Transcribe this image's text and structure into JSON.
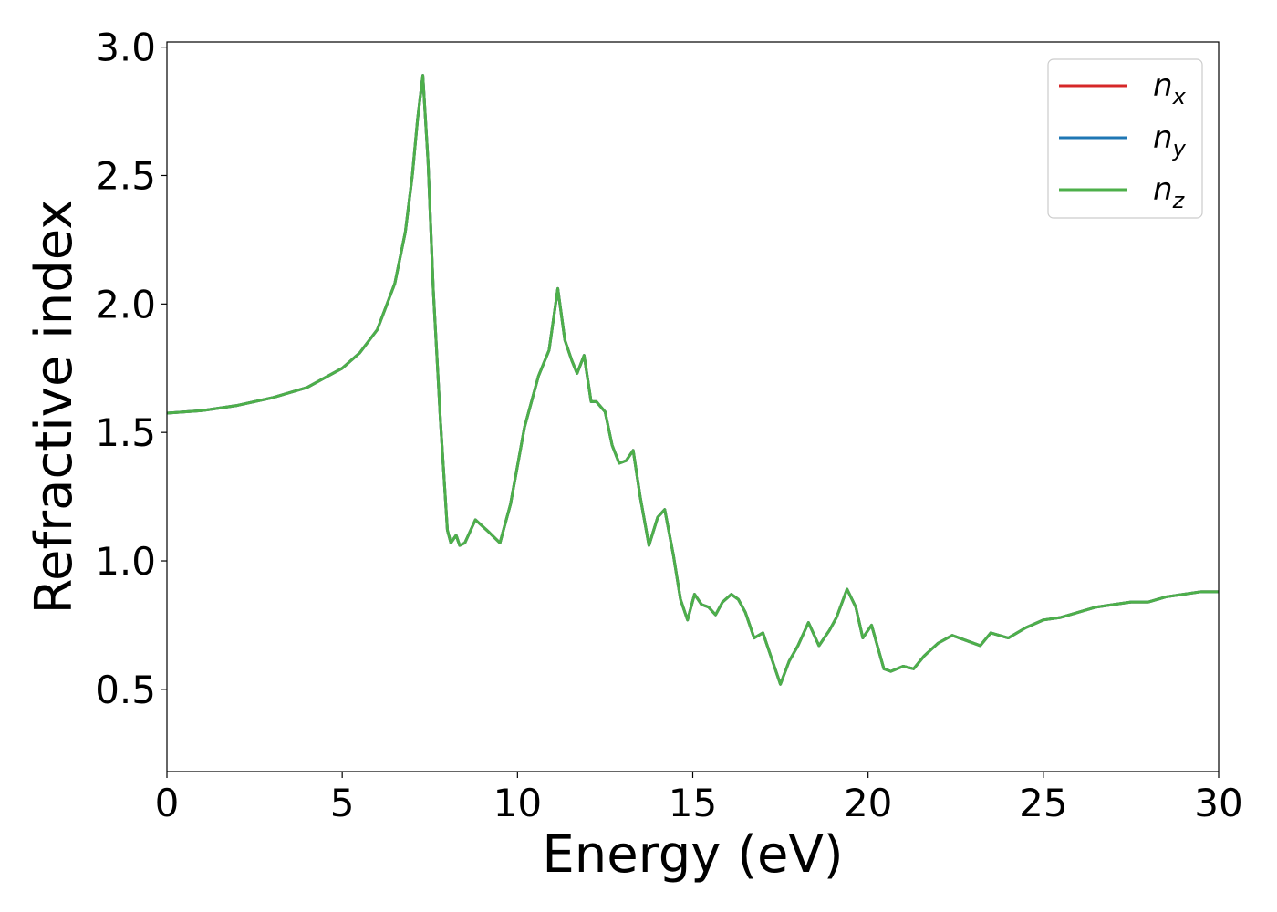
{
  "chart_data": {
    "type": "line",
    "xlabel": "Energy (eV)",
    "ylabel": "Refractive index",
    "xlim": [
      0,
      30
    ],
    "ylim": [
      0.18,
      3.02
    ],
    "xticks": [
      "0",
      "5",
      "10",
      "15",
      "20",
      "25",
      "30"
    ],
    "yticks": [
      "0.5",
      "1.0",
      "1.5",
      "2.0",
      "2.5",
      "3.0"
    ],
    "grid": false,
    "legend_position": "top-right",
    "series": [
      {
        "name": "n",
        "subscript": "x",
        "color": "#d62728",
        "x": [
          0,
          1,
          2,
          3,
          4,
          5,
          5.5,
          6,
          6.5,
          6.8,
          7.0,
          7.15,
          7.3,
          7.45,
          7.6,
          7.8,
          8.0,
          8.1,
          8.25,
          8.35,
          8.5,
          8.8,
          9.2,
          9.5,
          9.8,
          10.2,
          10.6,
          10.9,
          11.15,
          11.35,
          11.55,
          11.7,
          11.9,
          12.1,
          12.25,
          12.5,
          12.7,
          12.9,
          13.1,
          13.3,
          13.5,
          13.75,
          14.0,
          14.2,
          14.45,
          14.65,
          14.85,
          15.05,
          15.25,
          15.45,
          15.65,
          15.85,
          16.1,
          16.3,
          16.5,
          16.75,
          17.0,
          17.25,
          17.5,
          17.75,
          18.0,
          18.3,
          18.6,
          18.9,
          19.1,
          19.4,
          19.65,
          19.85,
          20.1,
          20.45,
          20.65,
          21.0,
          21.3,
          21.6,
          22.0,
          22.4,
          22.8,
          23.2,
          23.5,
          24.0,
          24.5,
          25.0,
          25.5,
          26.0,
          26.5,
          27.0,
          27.5,
          28.0,
          28.5,
          29.0,
          29.5,
          30.0
        ],
        "y": [
          1.575,
          1.585,
          1.605,
          1.635,
          1.675,
          1.75,
          1.81,
          1.9,
          2.08,
          2.28,
          2.5,
          2.72,
          2.89,
          2.55,
          2.05,
          1.55,
          1.12,
          1.07,
          1.1,
          1.06,
          1.07,
          1.16,
          1.11,
          1.07,
          1.22,
          1.52,
          1.72,
          1.82,
          2.06,
          1.86,
          1.78,
          1.73,
          1.8,
          1.62,
          1.62,
          1.58,
          1.45,
          1.38,
          1.39,
          1.43,
          1.25,
          1.06,
          1.17,
          1.2,
          1.02,
          0.85,
          0.77,
          0.87,
          0.83,
          0.82,
          0.79,
          0.84,
          0.87,
          0.85,
          0.8,
          0.7,
          0.72,
          0.62,
          0.52,
          0.61,
          0.67,
          0.76,
          0.67,
          0.73,
          0.78,
          0.89,
          0.82,
          0.7,
          0.75,
          0.58,
          0.57,
          0.59,
          0.58,
          0.63,
          0.68,
          0.71,
          0.69,
          0.67,
          0.72,
          0.7,
          0.74,
          0.77,
          0.78,
          0.8,
          0.82,
          0.83,
          0.84,
          0.84,
          0.86,
          0.87,
          0.88,
          0.88
        ]
      },
      {
        "name": "n",
        "subscript": "y",
        "color": "#1f77b4",
        "x": [
          0,
          1,
          2,
          3,
          4,
          5,
          5.5,
          6,
          6.5,
          6.8,
          7.0,
          7.15,
          7.3,
          7.45,
          7.6,
          7.8,
          8.0,
          8.1,
          8.25,
          8.35,
          8.5,
          8.8,
          9.2,
          9.5,
          9.8,
          10.2,
          10.6,
          10.9,
          11.15,
          11.35,
          11.55,
          11.7,
          11.9,
          12.1,
          12.25,
          12.5,
          12.7,
          12.9,
          13.1,
          13.3,
          13.5,
          13.75,
          14.0,
          14.2,
          14.45,
          14.65,
          14.85,
          15.05,
          15.25,
          15.45,
          15.65,
          15.85,
          16.1,
          16.3,
          16.5,
          16.75,
          17.0,
          17.25,
          17.5,
          17.75,
          18.0,
          18.3,
          18.6,
          18.9,
          19.1,
          19.4,
          19.65,
          19.85,
          20.1,
          20.45,
          20.65,
          21.0,
          21.3,
          21.6,
          22.0,
          22.4,
          22.8,
          23.2,
          23.5,
          24.0,
          24.5,
          25.0,
          25.5,
          26.0,
          26.5,
          27.0,
          27.5,
          28.0,
          28.5,
          29.0,
          29.5,
          30.0
        ],
        "y": [
          1.575,
          1.585,
          1.605,
          1.635,
          1.675,
          1.75,
          1.81,
          1.9,
          2.08,
          2.28,
          2.5,
          2.72,
          2.89,
          2.55,
          2.05,
          1.55,
          1.12,
          1.07,
          1.1,
          1.06,
          1.07,
          1.16,
          1.11,
          1.07,
          1.22,
          1.52,
          1.72,
          1.82,
          2.06,
          1.86,
          1.78,
          1.73,
          1.8,
          1.62,
          1.62,
          1.58,
          1.45,
          1.38,
          1.39,
          1.43,
          1.25,
          1.06,
          1.17,
          1.2,
          1.02,
          0.85,
          0.77,
          0.87,
          0.83,
          0.82,
          0.79,
          0.84,
          0.87,
          0.85,
          0.8,
          0.7,
          0.72,
          0.62,
          0.52,
          0.61,
          0.67,
          0.76,
          0.67,
          0.73,
          0.78,
          0.89,
          0.82,
          0.7,
          0.75,
          0.58,
          0.57,
          0.59,
          0.58,
          0.63,
          0.68,
          0.71,
          0.69,
          0.67,
          0.72,
          0.7,
          0.74,
          0.77,
          0.78,
          0.8,
          0.82,
          0.83,
          0.84,
          0.84,
          0.86,
          0.87,
          0.88,
          0.88
        ]
      },
      {
        "name": "n",
        "subscript": "z",
        "color": "#4daf4a",
        "x": [
          0,
          1,
          2,
          3,
          4,
          5,
          5.5,
          6,
          6.5,
          6.8,
          7.0,
          7.15,
          7.3,
          7.45,
          7.6,
          7.8,
          8.0,
          8.1,
          8.25,
          8.35,
          8.5,
          8.8,
          9.2,
          9.5,
          9.8,
          10.2,
          10.6,
          10.9,
          11.15,
          11.35,
          11.55,
          11.7,
          11.9,
          12.1,
          12.25,
          12.5,
          12.7,
          12.9,
          13.1,
          13.3,
          13.5,
          13.75,
          14.0,
          14.2,
          14.45,
          14.65,
          14.85,
          15.05,
          15.25,
          15.45,
          15.65,
          15.85,
          16.1,
          16.3,
          16.5,
          16.75,
          17.0,
          17.25,
          17.5,
          17.75,
          18.0,
          18.3,
          18.6,
          18.9,
          19.1,
          19.4,
          19.65,
          19.85,
          20.1,
          20.45,
          20.65,
          21.0,
          21.3,
          21.6,
          22.0,
          22.4,
          22.8,
          23.2,
          23.5,
          24.0,
          24.5,
          25.0,
          25.5,
          26.0,
          26.5,
          27.0,
          27.5,
          28.0,
          28.5,
          29.0,
          29.5,
          30.0
        ],
        "y": [
          1.575,
          1.585,
          1.605,
          1.635,
          1.675,
          1.75,
          1.81,
          1.9,
          2.08,
          2.28,
          2.5,
          2.72,
          2.89,
          2.55,
          2.05,
          1.55,
          1.12,
          1.07,
          1.1,
          1.06,
          1.07,
          1.16,
          1.11,
          1.07,
          1.22,
          1.52,
          1.72,
          1.82,
          2.06,
          1.86,
          1.78,
          1.73,
          1.8,
          1.62,
          1.62,
          1.58,
          1.45,
          1.38,
          1.39,
          1.43,
          1.25,
          1.06,
          1.17,
          1.2,
          1.02,
          0.85,
          0.77,
          0.87,
          0.83,
          0.82,
          0.79,
          0.84,
          0.87,
          0.85,
          0.8,
          0.7,
          0.72,
          0.62,
          0.52,
          0.61,
          0.67,
          0.76,
          0.67,
          0.73,
          0.78,
          0.89,
          0.82,
          0.7,
          0.75,
          0.58,
          0.57,
          0.59,
          0.58,
          0.63,
          0.68,
          0.71,
          0.69,
          0.67,
          0.72,
          0.7,
          0.74,
          0.77,
          0.78,
          0.8,
          0.82,
          0.83,
          0.84,
          0.84,
          0.86,
          0.87,
          0.88,
          0.88
        ]
      }
    ]
  }
}
